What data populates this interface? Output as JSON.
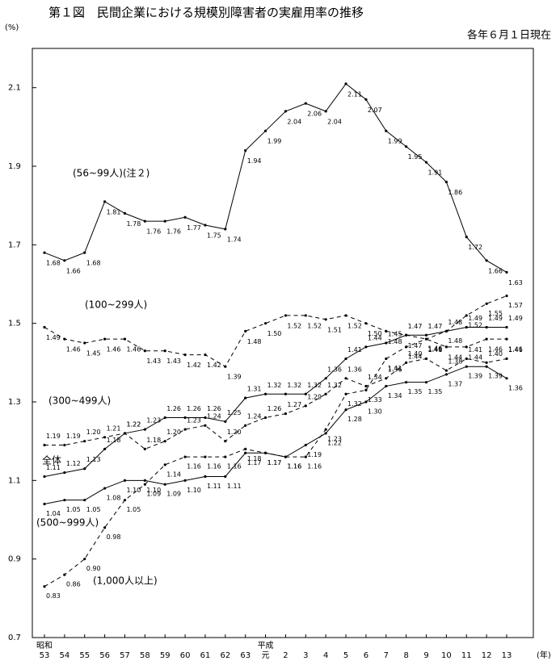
{
  "chart_data": {
    "type": "line",
    "title": "第１図　民間企業における規模別障害者の実雇用率の推移",
    "subtitle": "各年６月１日現在",
    "y_unit": "(%)",
    "x_unit": "(年)",
    "x_era_labels": [
      "昭和",
      "平成"
    ],
    "categories": [
      "53",
      "54",
      "55",
      "56",
      "57",
      "58",
      "59",
      "60",
      "61",
      "62",
      "63",
      "元",
      "2",
      "3",
      "4",
      "5",
      "6",
      "7",
      "8",
      "9",
      "10",
      "11",
      "12",
      "13"
    ],
    "ylim": [
      0.7,
      2.2
    ],
    "yticks": [
      0.7,
      0.9,
      1.1,
      1.3,
      1.5,
      1.7,
      1.9,
      2.1
    ],
    "grid": false,
    "series": [
      {
        "name": "(56~99人)(注２)",
        "color": "#000000",
        "dash": false,
        "values": [
          1.68,
          1.66,
          1.68,
          1.81,
          1.78,
          1.76,
          1.76,
          1.77,
          1.75,
          1.74,
          1.94,
          1.99,
          2.04,
          2.06,
          2.04,
          2.11,
          2.07,
          1.99,
          1.95,
          1.91,
          1.86,
          1.72,
          1.66,
          1.63
        ],
        "value_labels": [
          "1.68",
          "1.66",
          "1.68",
          "1.81",
          "1.78",
          "1.76",
          "1.76",
          "1.77",
          "1.75",
          "1.74",
          "1.94",
          "1.99",
          "2.04",
          "2.06",
          "2.04",
          "2.11",
          "2.07",
          "1.99",
          "1.95",
          "1.91",
          "1.86",
          "1.72",
          "1.66",
          "1.63"
        ]
      },
      {
        "name": "(100~299人)",
        "color": "#000000",
        "dash": true,
        "values": [
          1.49,
          1.46,
          1.45,
          1.46,
          1.46,
          1.43,
          1.43,
          1.42,
          1.42,
          1.39,
          1.48,
          1.5,
          1.52,
          1.52,
          1.51,
          1.52,
          1.5,
          1.48,
          1.47,
          1.46,
          1.44,
          1.44,
          1.46,
          1.46
        ],
        "value_labels": [
          "1.49",
          "1.46",
          "1.45",
          "1.46",
          "1.46",
          "1.43",
          "1.43",
          "1.42",
          "1.42",
          "1.39",
          "1.48",
          "1.50",
          "1.52",
          "1.52",
          "1.51",
          "1.52",
          "1.50",
          "1.48",
          "1.47",
          "1.46",
          "1.44",
          "1.44",
          "1.46",
          "1.46"
        ]
      },
      {
        "name": "(300~499人)",
        "color": "#000000",
        "dash": true,
        "values": [
          1.19,
          1.19,
          1.2,
          1.21,
          1.22,
          1.18,
          1.2,
          1.23,
          1.24,
          1.2,
          1.24,
          1.26,
          1.27,
          1.29,
          1.32,
          1.36,
          1.34,
          1.36,
          1.4,
          1.41,
          1.38,
          1.41,
          1.4,
          1.41
        ],
        "value_labels": [
          "1.19",
          "1.19",
          "1.20",
          "1.21",
          "1.22",
          "1.18",
          "1.20",
          "1.23",
          "1.24",
          "1.20",
          "1.24",
          "1.26",
          "1.27",
          "1.29",
          "1.32",
          "1.36",
          "1.34",
          "1.36",
          "1.40",
          "1.41",
          "1.38",
          "1.41",
          "1.40",
          "1.41"
        ]
      },
      {
        "name": "全体",
        "color": "#000000",
        "dash": false,
        "values": [
          1.11,
          1.12,
          1.13,
          1.18,
          1.22,
          1.23,
          1.26,
          1.26,
          1.26,
          1.25,
          1.31,
          1.32,
          1.32,
          1.32,
          1.36,
          1.41,
          1.44,
          1.45,
          1.47,
          1.47,
          1.48,
          1.49,
          1.49,
          1.49
        ],
        "value_labels": [
          "1.11",
          "1.12",
          "1.13",
          "1.18",
          "1.22",
          "1.23",
          "1.26",
          "1.26",
          "1.26",
          "1.25",
          "1.31",
          "1.32",
          "1.32",
          "1.32",
          "1.36",
          "1.41",
          "1.44",
          "1.45",
          "1.47",
          "1.47",
          "1.48",
          "1.49",
          "1.49",
          "1.49"
        ]
      },
      {
        "name": "(500~999人)",
        "color": "#000000",
        "dash": false,
        "values": [
          1.04,
          1.05,
          1.05,
          1.08,
          1.1,
          1.1,
          1.09,
          1.1,
          1.11,
          1.11,
          1.17,
          1.17,
          1.16,
          1.19,
          1.22,
          1.28,
          1.3,
          1.34,
          1.35,
          1.35,
          1.37,
          1.39,
          1.39,
          1.36
        ],
        "value_labels": [
          "1.04",
          "1.05",
          "1.05",
          "1.08",
          "1.10",
          "1.10",
          "1.09",
          "1.10",
          "1.11",
          "1.11",
          "1.17",
          "1.17",
          "1.16",
          "1.19",
          "1.22",
          "1.28",
          "1.30",
          "1.34",
          "1.35",
          "1.35",
          "1.37",
          "1.39",
          "1.39",
          "1.36"
        ]
      },
      {
        "name": "(1,000人以上)",
        "color": "#000000",
        "dash": true,
        "values": [
          0.83,
          0.86,
          0.9,
          0.98,
          1.05,
          1.09,
          1.14,
          1.16,
          1.16,
          1.16,
          1.18,
          1.17,
          1.16,
          1.16,
          1.23,
          1.32,
          1.33,
          1.41,
          1.44,
          1.46,
          1.48,
          1.52,
          1.55,
          1.57
        ],
        "value_labels": [
          "0.83",
          "0.86",
          "0.90",
          "0.98",
          "1.05",
          "1.09",
          "1.14",
          "1.16",
          "1.16",
          "1.16",
          "1.18",
          "1.17",
          "1.16",
          "1.16",
          "1.23",
          "1.32",
          "1.33",
          "1.41",
          "1.44",
          "1.46",
          "1.48",
          "1.52",
          "1.55",
          "1.57"
        ]
      }
    ]
  }
}
